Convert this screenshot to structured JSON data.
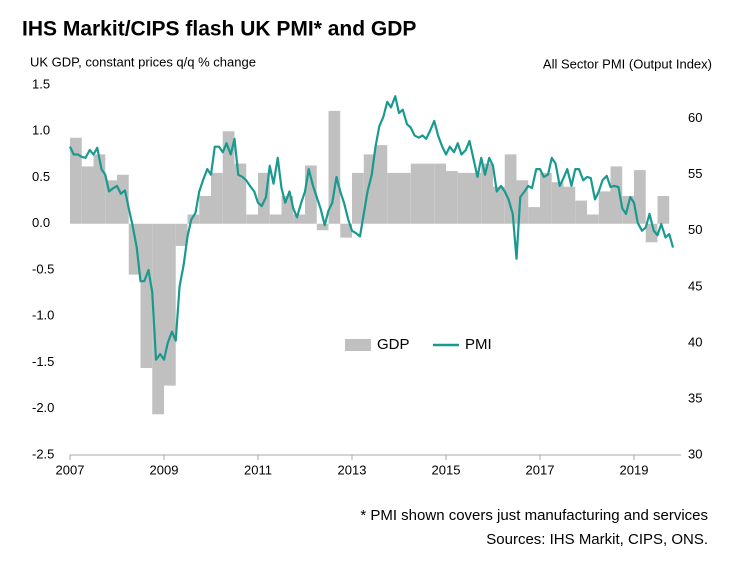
{
  "chart_data": {
    "type": "bar_line",
    "title": "IHS Markit/CIPS flash UK PMI* and GDP",
    "y_label": "UK GDP, constant prices q/q % change",
    "y2_label": "All Sector PMI (Output Index)",
    "notes": [
      "* PMI shown covers just manufacturing and services",
      "Sources: IHS Markit, CIPS, ONS."
    ],
    "xlim": [
      2007,
      2020
    ],
    "xticks": [
      2007,
      2009,
      2011,
      2013,
      2015,
      2017,
      2019
    ],
    "ylim": [
      -2.5,
      1.5
    ],
    "yticks": [
      {
        "value": -2.5,
        "label": "-2.5"
      },
      {
        "value": -2,
        "label": "-2.0"
      },
      {
        "value": -1.5,
        "label": "-1.5"
      },
      {
        "value": -1,
        "label": "-1.0"
      },
      {
        "value": -0.5,
        "label": "-0.5"
      },
      {
        "value": 0,
        "label": "0.0"
      },
      {
        "value": 0.5,
        "label": "0.5"
      },
      {
        "value": 1,
        "label": "1.0"
      },
      {
        "value": 1.5,
        "label": "1.5"
      }
    ],
    "y2lim": [
      30,
      63
    ],
    "y2ticks": [
      30,
      35,
      40,
      45,
      50,
      55,
      60
    ],
    "legend": "center",
    "series": [
      {
        "name": "GDP",
        "type": "bar",
        "color": "#c0c0c0",
        "x": [
          2007,
          2007.25,
          2007.5,
          2007.75,
          2008,
          2008.25,
          2008.5,
          2008.75,
          2009,
          2009.25,
          2009.5,
          2009.75,
          2010,
          2010.25,
          2010.5,
          2010.75,
          2011,
          2011.25,
          2011.5,
          2011.75,
          2012,
          2012.25,
          2012.5,
          2012.75,
          2013,
          2013.25,
          2013.5,
          2013.75,
          2014,
          2014.25,
          2014.5,
          2014.75,
          2015,
          2015.25,
          2015.5,
          2015.75,
          2016,
          2016.25,
          2016.5,
          2016.75,
          2017,
          2017.25,
          2017.5,
          2017.75,
          2018,
          2018.25,
          2018.5,
          2018.75,
          2019,
          2019.25,
          2019.5
        ],
        "values": [
          0.93,
          0.62,
          0.75,
          0.47,
          0.53,
          -0.55,
          -1.56,
          -2.06,
          -1.75,
          -0.24,
          0.1,
          0.3,
          0.55,
          1.0,
          0.65,
          0.1,
          0.55,
          0.1,
          0.3,
          0.1,
          0.63,
          -0.07,
          1.22,
          -0.15,
          0.55,
          0.75,
          0.85,
          0.55,
          0.55,
          0.65,
          0.65,
          0.65,
          0.57,
          0.55,
          0.55,
          0.65,
          0.4,
          0.75,
          0.47,
          0.18,
          0.55,
          0.45,
          0.4,
          0.25,
          0.1,
          0.35,
          0.62,
          0.3,
          0.58,
          -0.2,
          0.3
        ]
      },
      {
        "name": "PMI",
        "type": "line",
        "axis": "y2",
        "color": "#1a9a8f",
        "x": [
          2007,
          2007.08,
          2007.17,
          2007.25,
          2007.33,
          2007.42,
          2007.5,
          2007.58,
          2007.67,
          2007.75,
          2007.83,
          2007.92,
          2008,
          2008.08,
          2008.17,
          2008.25,
          2008.33,
          2008.42,
          2008.5,
          2008.58,
          2008.67,
          2008.75,
          2008.83,
          2008.92,
          2009,
          2009.08,
          2009.17,
          2009.25,
          2009.33,
          2009.42,
          2009.5,
          2009.58,
          2009.67,
          2009.75,
          2009.83,
          2009.92,
          2010,
          2010.08,
          2010.17,
          2010.25,
          2010.33,
          2010.42,
          2010.5,
          2010.58,
          2010.67,
          2010.75,
          2010.83,
          2010.92,
          2011,
          2011.08,
          2011.17,
          2011.25,
          2011.33,
          2011.42,
          2011.5,
          2011.58,
          2011.67,
          2011.75,
          2011.83,
          2011.92,
          2012,
          2012.08,
          2012.17,
          2012.25,
          2012.33,
          2012.42,
          2012.5,
          2012.58,
          2012.67,
          2012.75,
          2012.83,
          2012.92,
          2013,
          2013.08,
          2013.17,
          2013.25,
          2013.33,
          2013.42,
          2013.5,
          2013.58,
          2013.67,
          2013.75,
          2013.83,
          2013.92,
          2014,
          2014.08,
          2014.17,
          2014.25,
          2014.33,
          2014.42,
          2014.5,
          2014.58,
          2014.67,
          2014.75,
          2014.83,
          2014.92,
          2015,
          2015.08,
          2015.17,
          2015.25,
          2015.33,
          2015.42,
          2015.5,
          2015.58,
          2015.67,
          2015.75,
          2015.83,
          2015.92,
          2016,
          2016.08,
          2016.17,
          2016.25,
          2016.33,
          2016.42,
          2016.5,
          2016.58,
          2016.67,
          2016.75,
          2016.83,
          2016.92,
          2017,
          2017.08,
          2017.17,
          2017.25,
          2017.33,
          2017.42,
          2017.5,
          2017.58,
          2017.67,
          2017.75,
          2017.83,
          2017.92,
          2018,
          2018.08,
          2018.17,
          2018.25,
          2018.33,
          2018.42,
          2018.5,
          2018.58,
          2018.67,
          2018.75,
          2018.83,
          2018.92,
          2019,
          2019.08,
          2019.17,
          2019.25,
          2019.33,
          2019.42,
          2019.5,
          2019.58,
          2019.67,
          2019.75,
          2019.83
        ],
        "values": [
          57.5,
          56.8,
          56.8,
          56.6,
          56.5,
          57.2,
          56.8,
          57.4,
          55.5,
          55.0,
          53.5,
          53.8,
          54.0,
          53.3,
          53.6,
          52.0,
          50.5,
          48.5,
          45.5,
          45.5,
          46.5,
          44.5,
          38.5,
          39.0,
          38.5,
          40.0,
          41.0,
          40.2,
          45.0,
          47.0,
          49.5,
          51.0,
          51.6,
          53.5,
          54.5,
          55.5,
          55.0,
          57.5,
          57.5,
          57.0,
          57.8,
          56.8,
          58.2,
          55.0,
          54.8,
          54.5,
          54.0,
          53.5,
          52.5,
          52.2,
          53.0,
          55.8,
          54.2,
          56.5,
          53.8,
          52.5,
          53.5,
          52.0,
          51.2,
          52.5,
          53.5,
          55.5,
          54.0,
          53.0,
          52.0,
          50.5,
          51.8,
          52.5,
          54.8,
          53.5,
          52.5,
          51.0,
          50.0,
          49.8,
          49.5,
          51.5,
          53.5,
          55.0,
          57.5,
          59.3,
          60.2,
          61.5,
          61.0,
          62.0,
          60.5,
          60.8,
          59.5,
          59.2,
          58.5,
          58.3,
          58.5,
          58.2,
          59.0,
          59.8,
          58.5,
          57.5,
          56.8,
          57.5,
          57.0,
          57.8,
          56.8,
          57.2,
          58.0,
          56.5,
          54.8,
          56.5,
          55.0,
          56.5,
          55.8,
          53.5,
          54.0,
          53.5,
          52.8,
          51.5,
          47.5,
          53.0,
          53.5,
          54.0,
          53.8,
          55.5,
          55.5,
          54.8,
          55.0,
          56.5,
          56.0,
          54.0,
          54.7,
          55.5,
          54.0,
          55.5,
          55.5,
          54.5,
          54.8,
          54.7,
          52.8,
          53.5,
          54.5,
          54.9,
          53.9,
          54.0,
          53.9,
          52.0,
          51.5,
          53.0,
          52.5,
          50.7,
          50.0,
          50.3,
          51.5,
          50.0,
          49.6,
          50.6,
          49.4,
          49.7,
          48.5
        ]
      }
    ]
  }
}
